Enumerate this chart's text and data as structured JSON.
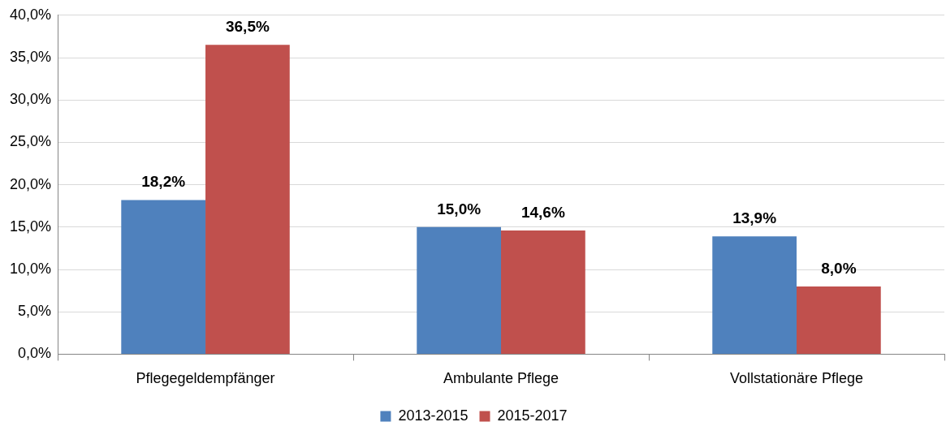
{
  "chart_data": {
    "type": "bar",
    "categories": [
      "Pflegegeldempfänger",
      "Ambulante Pflege",
      "Vollstationäre Pflege"
    ],
    "series": [
      {
        "name": "2013-2015",
        "color": "#4f81bd",
        "values": [
          18.2,
          15.0,
          13.9
        ],
        "value_labels": [
          "18,2%",
          "15,0%",
          "13,9%"
        ]
      },
      {
        "name": "2015-2017",
        "color": "#c0504d",
        "values": [
          36.5,
          14.6,
          8.0
        ],
        "value_labels": [
          "36,5%",
          "14,6%",
          "8,0%"
        ]
      }
    ],
    "ylim": [
      0,
      40
    ],
    "yticks": [
      {
        "value": 0,
        "label": "0,0%"
      },
      {
        "value": 5,
        "label": "5,0%"
      },
      {
        "value": 10,
        "label": "10,0%"
      },
      {
        "value": 15,
        "label": "15,0%"
      },
      {
        "value": 20,
        "label": "20,0%"
      },
      {
        "value": 25,
        "label": "25,0%"
      },
      {
        "value": 30,
        "label": "30,0%"
      },
      {
        "value": 35,
        "label": "35,0%"
      },
      {
        "value": 40,
        "label": "40,0%"
      }
    ],
    "grid": "y",
    "legend": "bottom"
  }
}
